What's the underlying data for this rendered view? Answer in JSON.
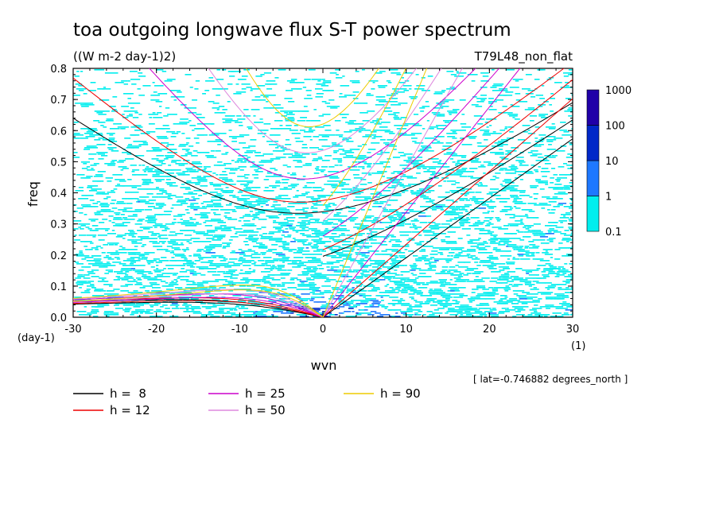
{
  "chart_data": {
    "type": "heatmap",
    "title": "toa outgoing longwave flux S-T power spectrum",
    "units_label": "((W m-2 day-1)2)",
    "run_label": "T79L48_non_flat",
    "xlabel": "wvn",
    "ylabel": "freq",
    "x_units": "(1)",
    "y_units": "(day-1)",
    "xlim": [
      -30,
      30
    ],
    "ylim": [
      0,
      0.8
    ],
    "x_ticks": [
      "-30",
      "-20",
      "-10",
      "0",
      "10",
      "20",
      "30"
    ],
    "y_ticks": [
      "0.0",
      "0.1",
      "0.2",
      "0.3",
      "0.4",
      "0.5",
      "0.6",
      "0.7",
      "0.8"
    ],
    "colorbar": {
      "levels": [
        "0.1",
        "1",
        "10",
        "100",
        "1000"
      ],
      "colors": [
        "#00eeee",
        "#1e78ff",
        "#0028c8",
        "#2000a8"
      ]
    },
    "heatmap_bg_color": "#00eeee",
    "annotation": "[ lat=-0.746882 degrees_north ]",
    "dispersion_curves": [
      {
        "label": "h =  8",
        "h": 8,
        "color": "#000000"
      },
      {
        "label": "h = 12",
        "h": 12,
        "color": "#ee0000"
      },
      {
        "label": "h = 25",
        "h": 25,
        "color": "#cc00cc"
      },
      {
        "label": "h = 50",
        "h": 50,
        "color": "#dd88dd"
      },
      {
        "label": "h = 90",
        "h": 90,
        "color": "#eecc00"
      }
    ]
  }
}
